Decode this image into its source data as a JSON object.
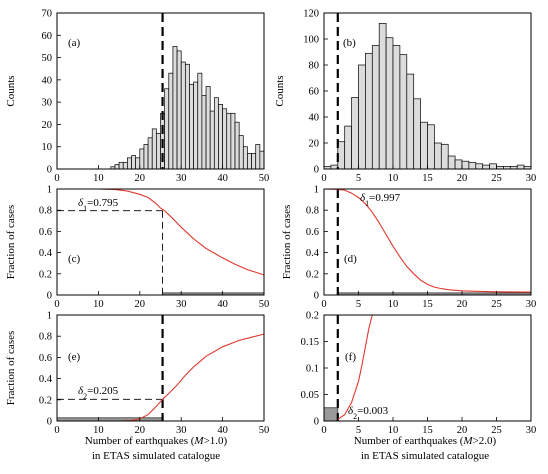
{
  "colors": {
    "bar_fill": "#dcdcdc",
    "bar_stroke": "#000000",
    "curve": "#e03a2f",
    "gray_box": "#9a9a9a"
  },
  "xaxis_titles": {
    "left": {
      "line1_pre": "Number of earthquakes (",
      "line1_var": "M",
      "line1_post": ">1.0)",
      "line2": "in ETAS simulated catalogue"
    },
    "right": {
      "line1_pre": "Number of earthquakes (",
      "line1_var": "M",
      "line1_post": ">2.0)",
      "line2": "in ETAS simulated catalogue"
    }
  },
  "chart_data": [
    {
      "id": "a",
      "panel_label": "(a)",
      "type": "bar",
      "ylabel": "Counts",
      "xlim": [
        0,
        50
      ],
      "ylim": [
        0,
        70
      ],
      "xticks": [
        0,
        10,
        20,
        30,
        40,
        50
      ],
      "yticks": [
        0,
        10,
        20,
        30,
        40,
        50,
        60,
        70
      ],
      "bin_start": 0,
      "bin_width": 1,
      "values": [
        0,
        0,
        0,
        0,
        0,
        0,
        0,
        0,
        0,
        0,
        0,
        0,
        0,
        1,
        2,
        3,
        3,
        5,
        6,
        5,
        9,
        11,
        14,
        18,
        16,
        25,
        36,
        43,
        55,
        53,
        48,
        47,
        38,
        39,
        43,
        33,
        37,
        26,
        32,
        29,
        27,
        25,
        25,
        21,
        15,
        10,
        7,
        7,
        11,
        8
      ],
      "cutoff_x": 25.5,
      "grid": false
    },
    {
      "id": "b",
      "panel_label": "(b)",
      "type": "bar",
      "ylabel": "Counts",
      "xlim": [
        0,
        30
      ],
      "ylim": [
        0,
        120
      ],
      "xticks": [
        0,
        5,
        10,
        15,
        20,
        25,
        30
      ],
      "yticks": [
        0,
        20,
        40,
        60,
        80,
        100,
        120
      ],
      "bin_start": 0,
      "bin_width": 1,
      "values": [
        2,
        3,
        21,
        33,
        55,
        80,
        89,
        95,
        112,
        101,
        95,
        88,
        73,
        54,
        36,
        34,
        20,
        19,
        10,
        7,
        6,
        5,
        4,
        3,
        4,
        2,
        2,
        2,
        3,
        2
      ],
      "cutoff_x": 2,
      "grid": false
    },
    {
      "id": "c",
      "panel_label": "(c)",
      "type": "line",
      "ylabel": "Fraction of cases",
      "xlim": [
        0,
        50
      ],
      "ylim": [
        0,
        1
      ],
      "xticks": [
        0,
        10,
        20,
        30,
        40,
        50
      ],
      "yticks": [
        0,
        0.2,
        0.4,
        0.6,
        0.8,
        1
      ],
      "ytick_labels": [
        "0",
        "0.2",
        "0.4",
        "0.6",
        "0.8",
        "1"
      ],
      "series": [
        {
          "x": [
            0,
            5,
            10,
            14,
            17,
            20,
            22,
            24,
            25,
            26,
            28,
            30,
            33,
            36,
            40,
            43,
            46,
            50
          ],
          "y": [
            1,
            1,
            1,
            0.995,
            0.98,
            0.95,
            0.92,
            0.86,
            0.82,
            0.795,
            0.72,
            0.64,
            0.53,
            0.44,
            0.35,
            0.29,
            0.24,
            0.19
          ]
        }
      ],
      "threshold_value": 0.795,
      "threshold_x": 25.5,
      "annotation": {
        "sym": "δ",
        "sub": "1",
        "text": "=0.795"
      },
      "shaded_box": {
        "x": [
          25.5,
          50
        ],
        "y": [
          0,
          0.02
        ]
      },
      "grid": false
    },
    {
      "id": "d",
      "panel_label": "(d)",
      "type": "line",
      "ylabel": "Fraction of cases",
      "xlim": [
        0,
        30
      ],
      "ylim": [
        0,
        1
      ],
      "xticks": [
        0,
        5,
        10,
        15,
        20,
        25,
        30
      ],
      "yticks": [
        0,
        0.2,
        0.4,
        0.6,
        0.8,
        1
      ],
      "ytick_labels": [
        "0",
        "0.2",
        "0.4",
        "0.6",
        "0.8",
        "1"
      ],
      "series": [
        {
          "x": [
            0,
            2,
            3,
            4,
            5,
            6,
            7,
            8,
            9,
            10,
            11,
            12,
            13,
            14,
            15,
            16,
            17,
            18,
            20,
            22,
            25,
            30
          ],
          "y": [
            1,
            0.997,
            0.99,
            0.96,
            0.92,
            0.86,
            0.78,
            0.68,
            0.57,
            0.46,
            0.36,
            0.27,
            0.2,
            0.14,
            0.1,
            0.075,
            0.06,
            0.05,
            0.04,
            0.035,
            0.03,
            0.027
          ]
        }
      ],
      "threshold_value": 0.997,
      "threshold_x": 2,
      "annotation": {
        "sym": "δ",
        "sub": "1",
        "text": "=0.997"
      },
      "shaded_box": {
        "x": [
          2,
          30
        ],
        "y": [
          0,
          0.02
        ]
      },
      "grid": false
    },
    {
      "id": "e",
      "panel_label": "(e)",
      "type": "line",
      "ylabel": "Fraction of cases",
      "xlim": [
        0,
        50
      ],
      "ylim": [
        0,
        1
      ],
      "xticks": [
        0,
        10,
        20,
        30,
        40,
        50
      ],
      "yticks": [
        0,
        0.2,
        0.4,
        0.6,
        0.8,
        1
      ],
      "ytick_labels": [
        "0",
        "0.2",
        "0.4",
        "0.6",
        "0.8",
        "1"
      ],
      "series": [
        {
          "x": [
            0,
            10,
            15,
            18,
            20,
            22,
            24,
            25.5,
            27,
            29,
            31,
            33,
            36,
            40,
            44,
            48,
            50
          ],
          "y": [
            0,
            0,
            0,
            0.005,
            0.02,
            0.06,
            0.14,
            0.205,
            0.26,
            0.34,
            0.43,
            0.51,
            0.61,
            0.7,
            0.76,
            0.8,
            0.82
          ]
        }
      ],
      "threshold_value": 0.205,
      "threshold_x": 25.5,
      "annotation": {
        "sym": "δ",
        "sub": "2",
        "text": "=0.205"
      },
      "shaded_box": {
        "x": [
          0,
          25.5
        ],
        "y": [
          0,
          0.03
        ]
      },
      "grid": false
    },
    {
      "id": "f",
      "panel_label": "(f)",
      "type": "line",
      "ylabel": "",
      "xlim": [
        0,
        30
      ],
      "ylim": [
        0,
        0.2
      ],
      "xticks": [
        0,
        5,
        10,
        15,
        20,
        25,
        30
      ],
      "yticks": [
        0,
        0.05,
        0.1,
        0.15,
        0.2
      ],
      "ytick_labels": [
        "0",
        "0.05",
        "0.1",
        "0.15",
        "0.2"
      ],
      "series": [
        {
          "x": [
            2,
            3,
            4,
            5,
            5.5,
            6,
            6.5,
            7
          ],
          "y": [
            0.003,
            0.012,
            0.035,
            0.075,
            0.105,
            0.14,
            0.175,
            0.2
          ]
        }
      ],
      "threshold_value": 0.003,
      "threshold_x": 2,
      "annotation": {
        "sym": "δ",
        "sub": "2",
        "text": "=0.003"
      },
      "shaded_box": {
        "x": [
          0,
          2
        ],
        "y": [
          0,
          0.025
        ]
      },
      "grid": false
    }
  ]
}
